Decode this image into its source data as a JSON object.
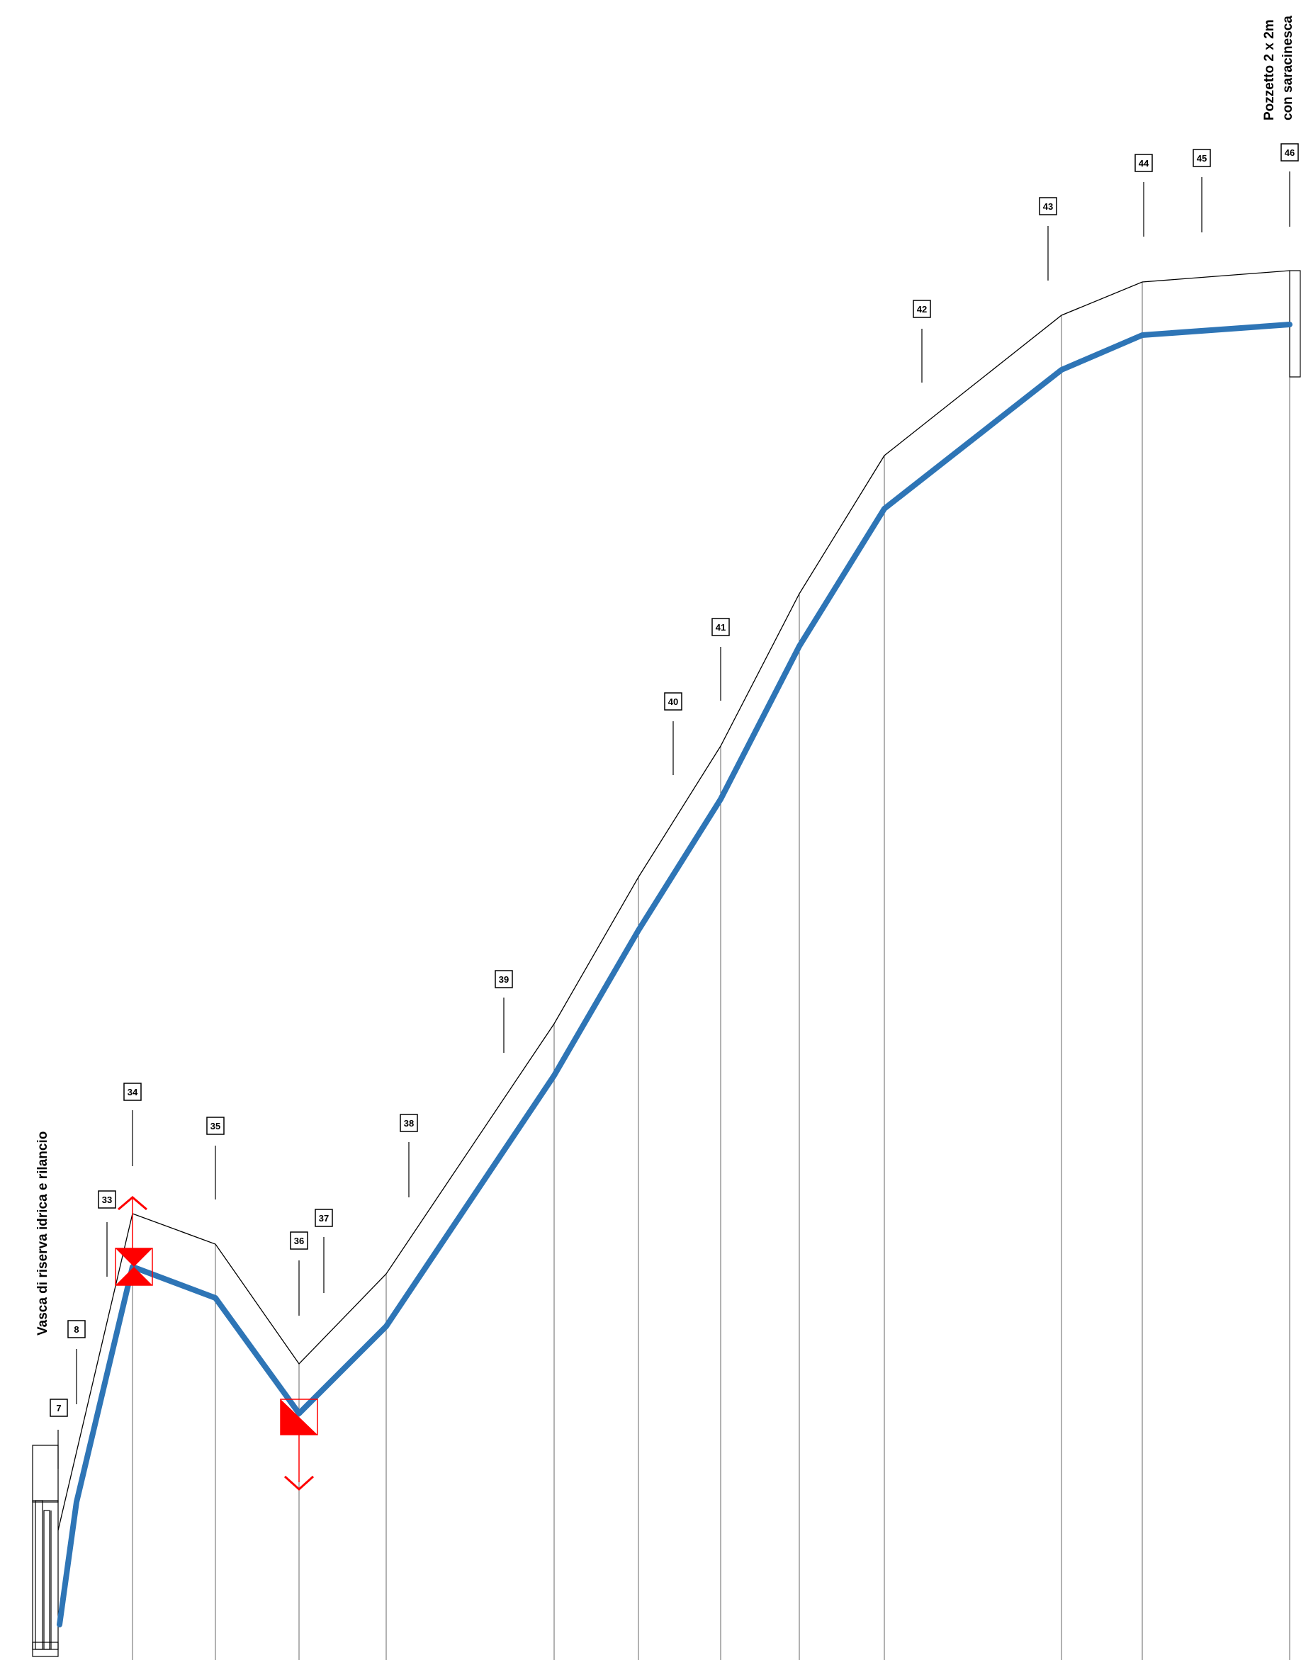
{
  "labels": {
    "tank": "Vasca di riserva idrica e rilancio",
    "manhole_line1": "Pozzetto 2 x 2m",
    "manhole_line2": "con saracinesca"
  },
  "nodes": [
    "7",
    "8",
    "33",
    "34",
    "35",
    "36",
    "37",
    "38",
    "39",
    "40",
    "41",
    "42",
    "43",
    "44",
    "45",
    "46"
  ],
  "colors": {
    "pipe": "#2e75b6",
    "ground": "#000000",
    "markers": "#ff0000",
    "guides": "#555555"
  },
  "icons": {
    "air_valve": "air-valve-icon",
    "drain_valve": "drain-valve-icon",
    "tank": "tank-icon",
    "manhole": "manhole-icon"
  }
}
